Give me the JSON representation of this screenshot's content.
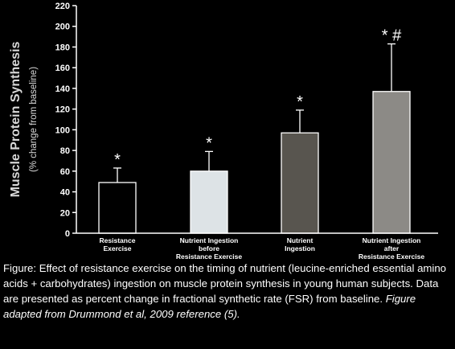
{
  "chart_data": {
    "type": "bar",
    "categories": [
      [
        "Resistance",
        "Exercise"
      ],
      [
        "Nutrient Ingestion",
        "before",
        "Resistance Exercise"
      ],
      [
        "Nutrient",
        "Ingestion"
      ],
      [
        "Nutrient Ingestion",
        "after",
        "Resistance Exercise"
      ]
    ],
    "values": [
      49,
      60,
      97,
      137
    ],
    "errors": [
      14,
      19,
      22,
      46
    ],
    "significance": [
      "*",
      "*",
      "*",
      "* #"
    ],
    "bar_colors": [
      "#000000",
      "#dde3e6",
      "#58554f",
      "#8c8a86"
    ],
    "ylabel": "Muscle Protein Synthesis",
    "ylabel_sub": "(% change from baseline)",
    "ylim": [
      0,
      220
    ],
    "yticks": [
      0,
      20,
      40,
      60,
      80,
      100,
      120,
      140,
      160,
      180,
      200,
      220
    ]
  },
  "caption": {
    "main": "Figure: Effect of resistance exercise on the timing of nutrient (leucine-enriched essential amino acids + carbohydrates) ingestion on muscle protein synthesis in young human subjects. Data are presented as percent change in fractional synthetic rate (FSR) from baseline. ",
    "italic": "Figure adapted from Drummond et al, 2009 reference (5)."
  }
}
